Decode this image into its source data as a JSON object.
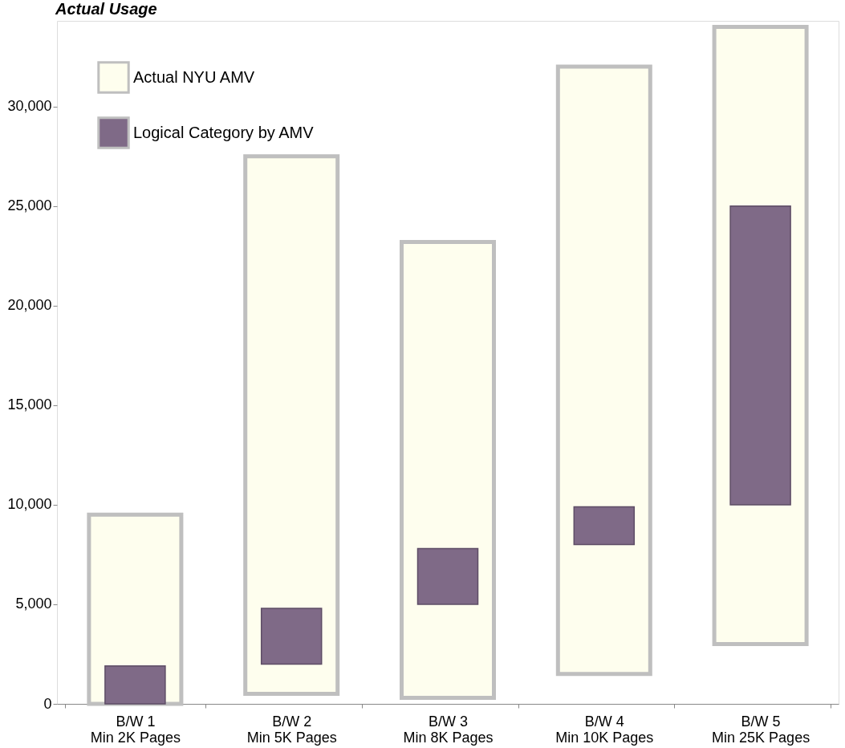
{
  "chart_data": {
    "type": "bar",
    "title": "Actual Usage",
    "categories": [
      "B/W 1\nMin 2K Pages",
      "B/W 2\nMin 5K Pages",
      "B/W 3\nMin 8K Pages",
      "B/W 4\nMin 10K Pages",
      "B/W 5\nMin 25K Pages"
    ],
    "series": [
      {
        "name": "Actual NYU AMV",
        "color": "#fefeee",
        "base": [
          0,
          500,
          300,
          1500,
          3000
        ],
        "values": [
          9500,
          27000,
          22900,
          30500,
          31000
        ]
      },
      {
        "name": "Logical Category by AMV",
        "color": "#7f6a87",
        "base": [
          0,
          2000,
          5000,
          8000,
          10000
        ],
        "values": [
          1900,
          2800,
          2800,
          1900,
          15000
        ]
      }
    ],
    "ylim": [
      0,
      34300
    ],
    "yticks": [
      0,
      {
        "value": 5000,
        "label": "5,000"
      },
      {
        "value": 10000,
        "label": "10,000"
      },
      {
        "value": 15000,
        "label": "15,000"
      },
      {
        "value": 20000,
        "label": "20,000"
      },
      {
        "value": 25000,
        "label": "25,000"
      },
      {
        "value": 30000,
        "label": "30,000"
      }
    ],
    "grid": false,
    "legend": "top left"
  }
}
